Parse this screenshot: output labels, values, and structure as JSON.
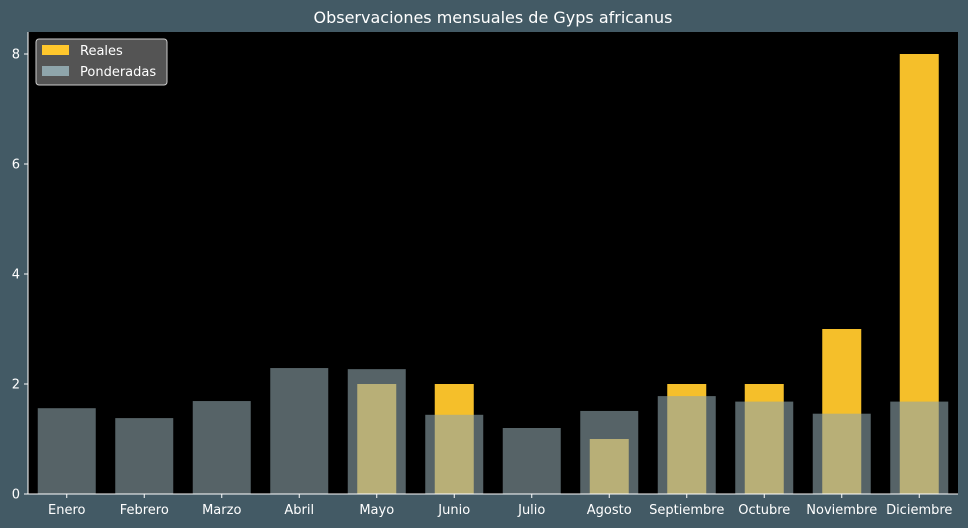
{
  "chart_data": {
    "type": "bar",
    "title": "Observaciones mensuales de Gyps africanus",
    "xlabel": "",
    "ylabel": "",
    "categories": [
      "Enero",
      "Febrero",
      "Marzo",
      "Abril",
      "Mayo",
      "Junio",
      "Julio",
      "Agosto",
      "Septiembre",
      "Octubre",
      "Noviembre",
      "Diciembre"
    ],
    "series": [
      {
        "name": "Reales",
        "color": "#ffc72c",
        "values": [
          0,
          0,
          0,
          0,
          2,
          2,
          0,
          1,
          2,
          2,
          3,
          8
        ]
      },
      {
        "name": "Ponderadas",
        "color": "#8fa5ab",
        "values": [
          1.56,
          1.38,
          1.69,
          2.29,
          2.27,
          1.44,
          1.2,
          1.51,
          1.78,
          1.68,
          1.46,
          1.68
        ]
      }
    ],
    "ylim": [
      0,
      8.4
    ],
    "yticks": [
      0,
      2,
      4,
      6,
      8
    ],
    "grid": false,
    "legend_position": "top-left",
    "colors": {
      "figure_background": "#435a65",
      "plot_background": "#000000",
      "text": "#ffffff",
      "legend_background": "#545454"
    }
  }
}
